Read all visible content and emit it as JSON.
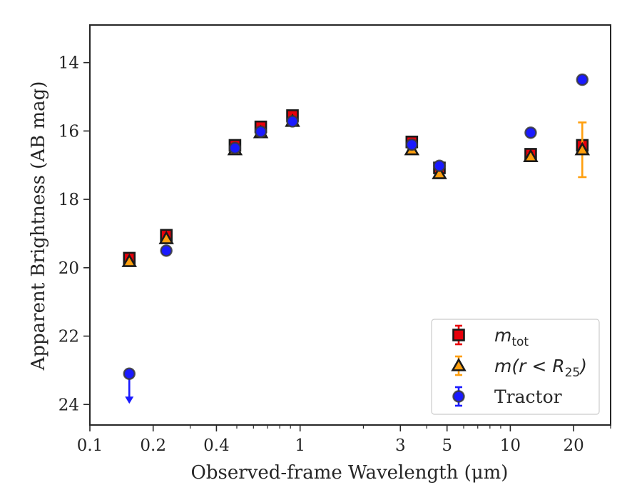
{
  "chart_data": {
    "type": "scatter",
    "xscale": "log",
    "xlim": [
      0.1,
      30
    ],
    "ylim": [
      24.6,
      12.9
    ],
    "y_inverted": true,
    "grid": false,
    "legend_position": "lower-right",
    "xlabel": "Observed-frame Wavelength (μm)",
    "ylabel": "Apparent Brightness (AB mag)",
    "x_major_ticks": [
      0.1,
      0.2,
      0.4,
      1,
      3,
      5,
      10,
      20
    ],
    "x_tick_labels": [
      "0.1",
      "0.2",
      "0.4",
      "1",
      "3",
      "5",
      "10",
      "20"
    ],
    "y_ticks": [
      14,
      16,
      18,
      20,
      22,
      24
    ],
    "y_tick_labels": [
      "14",
      "16",
      "18",
      "20",
      "22",
      "24"
    ],
    "series": [
      {
        "name": "m_tot",
        "legend_label": {
          "base": "m",
          "sub": "tot"
        },
        "marker": "square",
        "color": "#e8000b",
        "points": [
          {
            "x": 0.154,
            "y": 19.72,
            "yerr": 0.1
          },
          {
            "x": 0.231,
            "y": 19.05,
            "yerr": 0.08
          },
          {
            "x": 0.49,
            "y": 16.42,
            "yerr": 0.06
          },
          {
            "x": 0.65,
            "y": 15.88,
            "yerr": 0.12
          },
          {
            "x": 0.92,
            "y": 15.55,
            "yerr": 0.1
          },
          {
            "x": 3.4,
            "y": 16.32,
            "yerr": 0.05
          },
          {
            "x": 4.6,
            "y": 17.08,
            "yerr": 0.05
          },
          {
            "x": 12.5,
            "y": 16.68,
            "yerr": 0.05
          },
          {
            "x": 22.0,
            "y": 16.42,
            "yerr": 0.1
          }
        ]
      },
      {
        "name": "m(r < R25)",
        "legend_label": {
          "base": "m(r < R",
          "sub": "25",
          "tail": ")"
        },
        "marker": "triangle",
        "color": "#ff9f0e",
        "points": [
          {
            "x": 0.154,
            "y": 19.82,
            "yerr": 0.05
          },
          {
            "x": 0.231,
            "y": 19.15,
            "yerr": 0.05
          },
          {
            "x": 0.49,
            "y": 16.55,
            "yerr": 0.05
          },
          {
            "x": 0.65,
            "y": 16.05,
            "yerr": 0.05
          },
          {
            "x": 0.92,
            "y": 15.72,
            "yerr": 0.05
          },
          {
            "x": 3.4,
            "y": 16.55,
            "yerr": 0.05
          },
          {
            "x": 4.6,
            "y": 17.25,
            "yerr": 0.05
          },
          {
            "x": 12.5,
            "y": 16.75,
            "yerr": 0.08
          },
          {
            "x": 22.0,
            "y": 16.55,
            "yerr": 0.8
          }
        ]
      },
      {
        "name": "Tractor",
        "legend_label": {
          "base": "Tractor"
        },
        "marker": "circle",
        "color": "#1a1aff",
        "points": [
          {
            "x": 0.154,
            "y": 23.1,
            "yerr": 0,
            "upper_limit": true
          },
          {
            "x": 0.231,
            "y": 19.5,
            "yerr": 0.05
          },
          {
            "x": 0.49,
            "y": 16.5,
            "yerr": 0.05
          },
          {
            "x": 0.65,
            "y": 16.02,
            "yerr": 0.05
          },
          {
            "x": 0.92,
            "y": 15.72,
            "yerr": 0.05
          },
          {
            "x": 3.4,
            "y": 16.4,
            "yerr": 0.05
          },
          {
            "x": 4.6,
            "y": 17.02,
            "yerr": 0.05
          },
          {
            "x": 12.5,
            "y": 16.05,
            "yerr": 0.03
          },
          {
            "x": 22.0,
            "y": 14.5,
            "yerr": 0.03
          }
        ]
      }
    ]
  }
}
